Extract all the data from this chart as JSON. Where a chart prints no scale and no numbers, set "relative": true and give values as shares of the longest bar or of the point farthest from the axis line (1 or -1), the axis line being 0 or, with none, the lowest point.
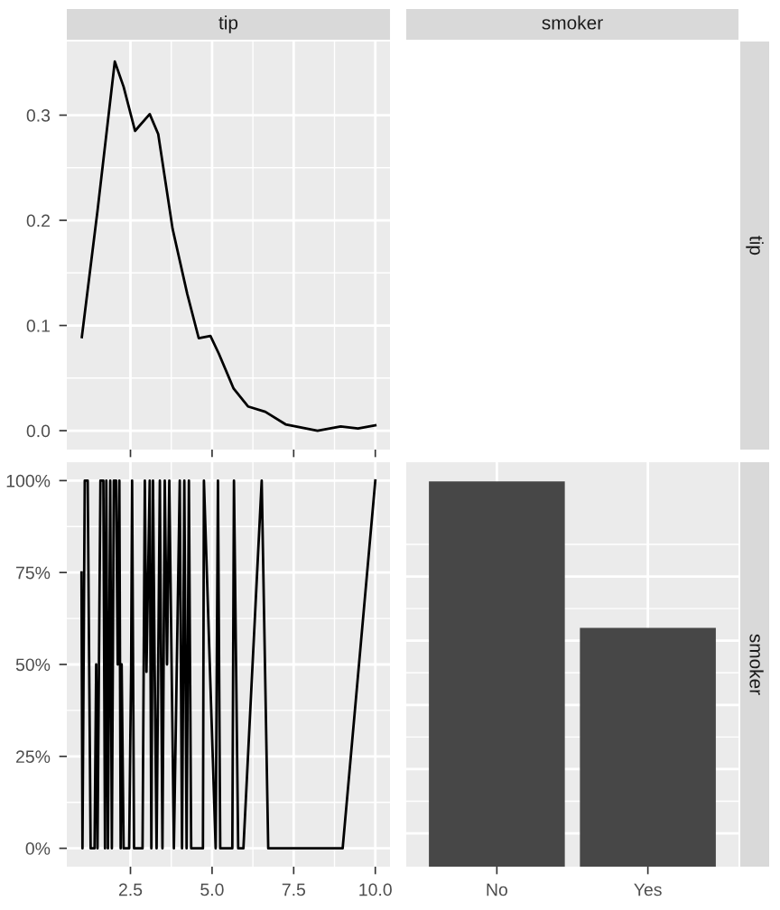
{
  "chart_data": [
    {
      "type": "line",
      "title": "tip",
      "x": [
        1.01,
        1.49,
        2.02,
        2.29,
        2.64,
        3.09,
        3.35,
        3.79,
        4.24,
        4.59,
        4.95,
        5.21,
        5.66,
        6.1,
        6.63,
        7.25,
        8.23,
        8.94,
        9.47,
        10.0
      ],
      "series": [
        {
          "color": "#000000",
          "values": [
            0.089,
            0.209,
            0.351,
            0.327,
            0.285,
            0.301,
            0.282,
            0.192,
            0.13,
            0.088,
            0.09,
            0.073,
            0.04,
            0.023,
            0.018,
            0.006,
            0.0,
            0.004,
            0.002,
            0.005
          ]
        }
      ],
      "xlim": [
        0.55,
        10.45
      ],
      "xticks": [
        {
          "value": 2.5,
          "label": null
        },
        {
          "value": 5.0,
          "label": null
        },
        {
          "value": 7.5,
          "label": null
        },
        {
          "value": 10.0,
          "label": null
        }
      ],
      "ylim": [
        -0.018,
        0.37
      ],
      "yticks": [
        {
          "value": 0,
          "label": "0.0"
        },
        {
          "value": 0.1,
          "label": "0.1"
        },
        {
          "value": 0.2,
          "label": "0.2"
        },
        {
          "value": 0.3,
          "label": "0.3"
        }
      ],
      "grid": true,
      "tick_labels": "y"
    },
    {
      "type": "other",
      "title": "smoker",
      "y2label": "tip"
    },
    {
      "type": "line",
      "x": [
        1.0,
        1.03,
        1.1,
        1.19,
        1.28,
        1.4,
        1.45,
        1.49,
        1.52,
        1.58,
        1.67,
        1.72,
        1.76,
        1.81,
        1.88,
        1.93,
        1.99,
        2.06,
        2.11,
        2.16,
        2.2,
        2.23,
        2.29,
        2.46,
        2.52,
        2.55,
        2.61,
        2.87,
        2.94,
        2.99,
        3.09,
        3.14,
        3.19,
        3.24,
        3.3,
        3.4,
        3.48,
        3.55,
        3.62,
        3.69,
        3.76,
        3.83,
        4.01,
        4.08,
        4.15,
        4.22,
        4.29,
        4.36,
        4.72,
        4.75,
        5.11,
        5.18,
        5.25,
        5.62,
        5.67,
        5.8,
        5.96,
        6.52,
        6.72,
        9.0,
        10.0
      ],
      "series": [
        {
          "color": "#000000",
          "values": [
            75,
            0,
            100,
            100,
            0,
            0,
            50,
            0,
            33,
            100,
            100,
            0,
            100,
            0,
            100,
            0,
            100,
            100,
            50,
            100,
            0,
            50,
            0,
            0,
            50,
            100,
            0,
            0,
            100,
            48,
            100,
            0,
            100,
            50,
            0,
            100,
            0,
            100,
            50,
            100,
            50,
            0,
            100,
            0,
            100,
            0,
            100,
            0,
            0,
            100,
            0,
            100,
            0,
            0,
            100,
            0,
            0,
            100,
            0,
            0,
            100
          ]
        }
      ],
      "xlim": [
        0.55,
        10.45
      ],
      "xticks": [
        {
          "value": 2.5,
          "label": "2.5"
        },
        {
          "value": 5.0,
          "label": "5.0"
        },
        {
          "value": 7.5,
          "label": "7.5"
        },
        {
          "value": 10.0,
          "label": "10.0"
        }
      ],
      "ylim": [
        -5,
        105
      ],
      "yticks": [
        {
          "value": 0,
          "label": "0%"
        },
        {
          "value": 25,
          "label": "25%"
        },
        {
          "value": 50,
          "label": "50%"
        },
        {
          "value": 75,
          "label": "75%"
        },
        {
          "value": 100,
          "label": "100%"
        }
      ],
      "grid": true
    },
    {
      "type": "bar",
      "categories": [
        "No",
        "Yes"
      ],
      "values": [
        1,
        0.62
      ],
      "color": "#474747",
      "relative": true,
      "y2label": "smoker",
      "grid": true,
      "tick_labels": "x"
    }
  ]
}
